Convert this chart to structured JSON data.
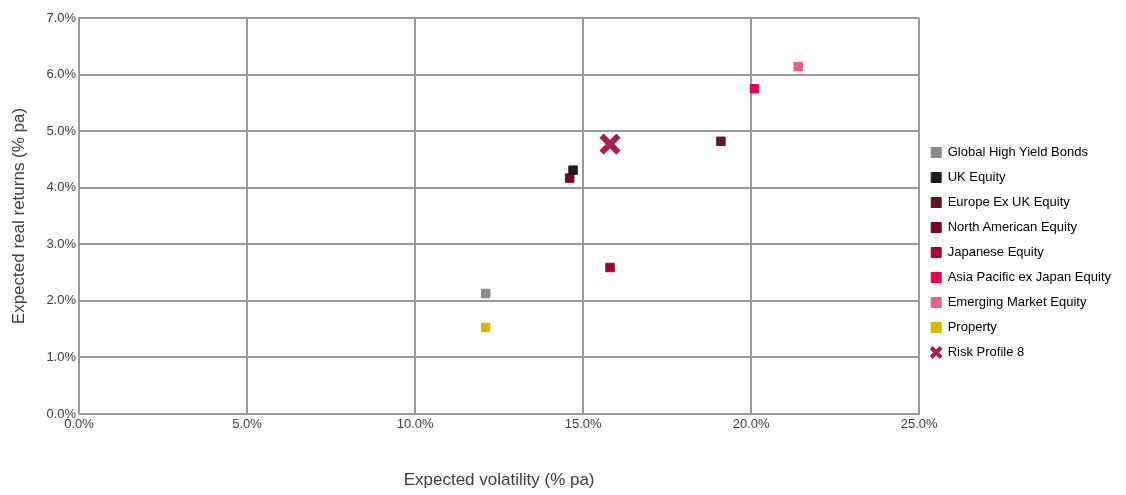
{
  "chart_data": {
    "type": "scatter",
    "xlabel": "Expected volatility (% pa)",
    "ylabel": "Expected real returns (% pa)",
    "xlim": [
      0,
      25
    ],
    "ylim": [
      0,
      7
    ],
    "xticks": [
      {
        "value": 0,
        "label": "0.0%"
      },
      {
        "value": 5,
        "label": "5.0%"
      },
      {
        "value": 10,
        "label": "10.0%"
      },
      {
        "value": 15,
        "label": "15.0%"
      },
      {
        "value": 20,
        "label": "20.0%"
      },
      {
        "value": 25,
        "label": "25.0%"
      }
    ],
    "yticks": [
      {
        "value": 0,
        "label": "0.0%"
      },
      {
        "value": 1,
        "label": "1.0%"
      },
      {
        "value": 2,
        "label": "2.0%"
      },
      {
        "value": 3,
        "label": "3.0%"
      },
      {
        "value": 4,
        "label": "4.0%"
      },
      {
        "value": 5,
        "label": "5.0%"
      },
      {
        "value": 6,
        "label": "6.0%"
      },
      {
        "value": 7,
        "label": "7.0%"
      }
    ],
    "grid": true,
    "legend": "right",
    "marker": "square",
    "series": [
      {
        "name": "Global High Yield Bonds",
        "color": "#8a8a8a",
        "x": [
          12.1
        ],
        "values": [
          2.13
        ]
      },
      {
        "name": "UK Equity",
        "color": "#1e1e1a",
        "x": [
          14.7
        ],
        "values": [
          4.31
        ]
      },
      {
        "name": "Europe Ex UK Equity",
        "color": "#5e1726",
        "x": [
          19.1
        ],
        "values": [
          4.82
        ]
      },
      {
        "name": "North American Equity",
        "color": "#7a0030",
        "x": [
          14.6
        ],
        "values": [
          4.17
        ]
      },
      {
        "name": "Japanese Equity",
        "color": "#a8003a",
        "x": [
          15.8
        ],
        "values": [
          2.59
        ]
      },
      {
        "name": "Asia Pacific ex Japan Equity",
        "color": "#e5004f",
        "x": [
          20.1
        ],
        "values": [
          5.75
        ]
      },
      {
        "name": "Emerging Market Equity",
        "color": "#e8608f",
        "x": [
          21.4
        ],
        "values": [
          6.14
        ]
      },
      {
        "name": "Property",
        "color": "#d4b800",
        "x": [
          12.1
        ],
        "values": [
          1.53
        ]
      },
      {
        "name": "Risk Profile 8",
        "color": "#a91e4c",
        "marker": "cross",
        "x": [
          15.8
        ],
        "values": [
          4.77
        ]
      }
    ]
  }
}
